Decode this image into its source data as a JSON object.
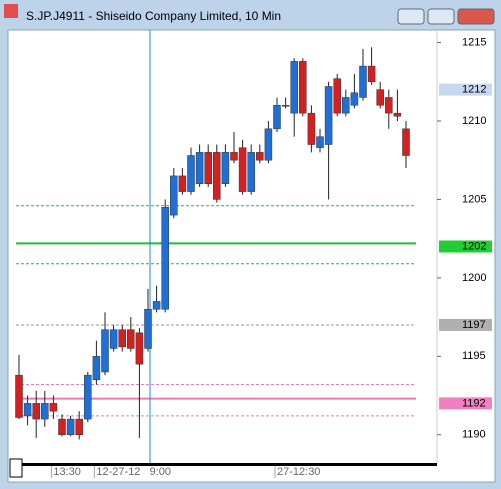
{
  "window_title": "S.JP.J4911 - Shiseido Company Limited, 10 Min",
  "chart_data": {
    "type": "candlestick",
    "ylim": [
      1188.2,
      1215.8
    ],
    "yticks": [
      1190,
      1195,
      1200,
      1205,
      1210,
      1215
    ],
    "up_color": "#1f6fd6",
    "down_color": "#d42020",
    "open": [
      1193.8,
      1191.2,
      1192.0,
      1191.0,
      1192.0,
      1191.0,
      1190.0,
      1191.0,
      1191.0,
      1193.5,
      1194.0,
      1195.5,
      1196.7,
      1196.7,
      1196.5,
      1195.5,
      1198.0,
      1198.0,
      1204.0,
      1206.5,
      1205.5,
      1206.0,
      1208.0,
      1208.0,
      1206.0,
      1208.0,
      1208.3,
      1205.5,
      1208.0,
      1207.5,
      1209.5,
      1211.0,
      1210.5,
      1213.8,
      1210.5,
      1208.3,
      1208.5,
      1212.7,
      1210.5,
      1211.0,
      1211.5,
      1213.5,
      1212.0,
      1211.5,
      1210.5,
      1209.5
    ],
    "high": [
      1195.1,
      1192.5,
      1192.8,
      1192.8,
      1192.5,
      1191.3,
      1191.2,
      1191.5,
      1194.0,
      1196.0,
      1197.8,
      1197.0,
      1197.0,
      1197.5,
      1196.8,
      1199.3,
      1199.5,
      1205.0,
      1207.0,
      1207.0,
      1208.3,
      1208.5,
      1208.5,
      1208.5,
      1208.5,
      1209.3,
      1208.8,
      1208.5,
      1208.5,
      1210.0,
      1211.5,
      1211.5,
      1214.0,
      1214.0,
      1211.0,
      1209.5,
      1212.5,
      1213.0,
      1212.0,
      1213.0,
      1214.6,
      1214.7,
      1212.5,
      1212.0,
      1212.0,
      1210.0
    ],
    "low": [
      1191.0,
      1190.6,
      1189.8,
      1190.5,
      1191.0,
      1189.9,
      1189.9,
      1189.7,
      1190.8,
      1193.2,
      1193.8,
      1195.3,
      1195.3,
      1195.3,
      1189.8,
      1195.3,
      1197.8,
      1197.8,
      1203.8,
      1205.3,
      1205.3,
      1205.8,
      1205.8,
      1204.8,
      1205.8,
      1207.3,
      1205.3,
      1205.3,
      1207.3,
      1207.3,
      1209.3,
      1210.8,
      1209.0,
      1210.3,
      1208.0,
      1208.0,
      1205.0,
      1210.3,
      1210.3,
      1210.8,
      1211.3,
      1212.3,
      1210.8,
      1209.5,
      1210.0,
      1207.0
    ],
    "close": [
      1191.1,
      1192.0,
      1191.0,
      1192.0,
      1191.5,
      1190.0,
      1191.0,
      1190.0,
      1193.8,
      1195.0,
      1196.7,
      1196.7,
      1195.6,
      1195.5,
      1194.5,
      1198.0,
      1198.5,
      1204.5,
      1206.5,
      1205.5,
      1207.8,
      1208.0,
      1206.0,
      1205.0,
      1208.0,
      1207.5,
      1205.5,
      1208.0,
      1207.5,
      1209.5,
      1211.0,
      1211.0,
      1213.8,
      1210.5,
      1208.5,
      1209.0,
      1212.2,
      1210.5,
      1211.5,
      1211.8,
      1213.5,
      1212.5,
      1211.0,
      1210.5,
      1210.3,
      1207.8
    ],
    "levels": [
      {
        "value": 1204.6,
        "color": "#22bb33",
        "style": "dashed"
      },
      {
        "value": 1202.2,
        "color": "#22bb33",
        "style": "solid"
      },
      {
        "value": 1200.9,
        "color": "#22bb33",
        "style": "dashed"
      },
      {
        "value": 1197,
        "color": "#999999",
        "style": "dashed"
      },
      {
        "value": 1193.2,
        "color": "#e080c0",
        "style": "dashed"
      },
      {
        "value": 1192.3,
        "color": "#ee77bb",
        "style": "solid"
      },
      {
        "value": 1191.2,
        "color": "#e080c0",
        "style": "dashed"
      }
    ],
    "price_labels": [
      {
        "value": 1212,
        "bg": "#c8d8f0"
      },
      {
        "value": 1202,
        "bg": "#22cc33"
      },
      {
        "value": 1197,
        "bg": "#b0b0b0"
      },
      {
        "value": 1192,
        "bg": "#f080c0"
      }
    ],
    "x_labels": [
      {
        "index": 4,
        "label": "13:30"
      },
      {
        "index": 9,
        "label": "12-27-12   9:00"
      },
      {
        "index": 30,
        "label": "27-12:30"
      }
    ],
    "crosshair_index": 15
  }
}
